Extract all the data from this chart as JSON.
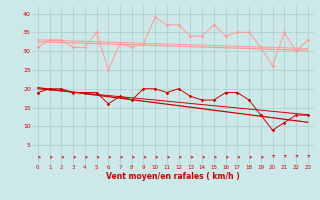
{
  "x": [
    0,
    1,
    2,
    3,
    4,
    5,
    6,
    7,
    8,
    9,
    10,
    11,
    12,
    13,
    14,
    15,
    16,
    17,
    18,
    19,
    20,
    21,
    22,
    23
  ],
  "wind_avg": [
    19,
    20,
    20,
    19,
    19,
    19,
    16,
    18,
    17,
    20,
    20,
    19,
    20,
    18,
    17,
    17,
    19,
    19,
    17,
    13,
    9,
    11,
    13,
    13
  ],
  "wind_gust": [
    31,
    33,
    33,
    31,
    31,
    35,
    25,
    32,
    31,
    32,
    39,
    37,
    37,
    34,
    34,
    37,
    34,
    35,
    35,
    31,
    26,
    35,
    30,
    33
  ],
  "bg_color": "#cce8e8",
  "grid_color": "#aacccc",
  "line_color_avg": "#cc0000",
  "line_color_gust": "#ff9999",
  "xlabel": "Vent moyen/en rafales ( km/h )",
  "xlabel_color": "#cc0000",
  "yticks": [
    5,
    10,
    15,
    20,
    25,
    30,
    35,
    40
  ],
  "ylim": [
    0,
    42
  ],
  "xlim": [
    -0.5,
    23.5
  ],
  "trend_avg": [
    20.3,
    19.9,
    19.5,
    19.1,
    18.7,
    18.3,
    17.9,
    17.5,
    17.1,
    16.7,
    16.3,
    15.9,
    15.5,
    15.1,
    14.7,
    14.3,
    13.9,
    13.5,
    13.1,
    12.7,
    12.3,
    11.9,
    11.5,
    11.1
  ],
  "trend_avg2": [
    20.0,
    19.7,
    19.4,
    19.1,
    18.8,
    18.5,
    18.2,
    17.9,
    17.6,
    17.3,
    17.0,
    16.7,
    16.4,
    16.1,
    15.8,
    15.5,
    15.2,
    14.9,
    14.6,
    14.3,
    14.0,
    13.7,
    13.4,
    13.1
  ],
  "trend_gust": [
    32.5,
    32.4,
    32.3,
    32.2,
    32.1,
    32.0,
    31.9,
    31.8,
    31.7,
    31.6,
    31.5,
    31.4,
    31.3,
    31.2,
    31.1,
    31.0,
    30.9,
    30.8,
    30.7,
    30.6,
    30.5,
    30.4,
    30.3,
    30.2
  ],
  "trend_gust2": [
    33.0,
    32.9,
    32.8,
    32.7,
    32.6,
    32.5,
    32.4,
    32.3,
    32.2,
    32.1,
    32.0,
    31.9,
    31.8,
    31.7,
    31.6,
    31.5,
    31.4,
    31.3,
    31.2,
    31.1,
    31.0,
    30.9,
    30.8,
    30.7
  ],
  "arrow_angles_deg": [
    0,
    0,
    0,
    0,
    0,
    0,
    0,
    0,
    0,
    0,
    0,
    0,
    0,
    0,
    0,
    0,
    0,
    0,
    0,
    0,
    45,
    45,
    45,
    45
  ]
}
